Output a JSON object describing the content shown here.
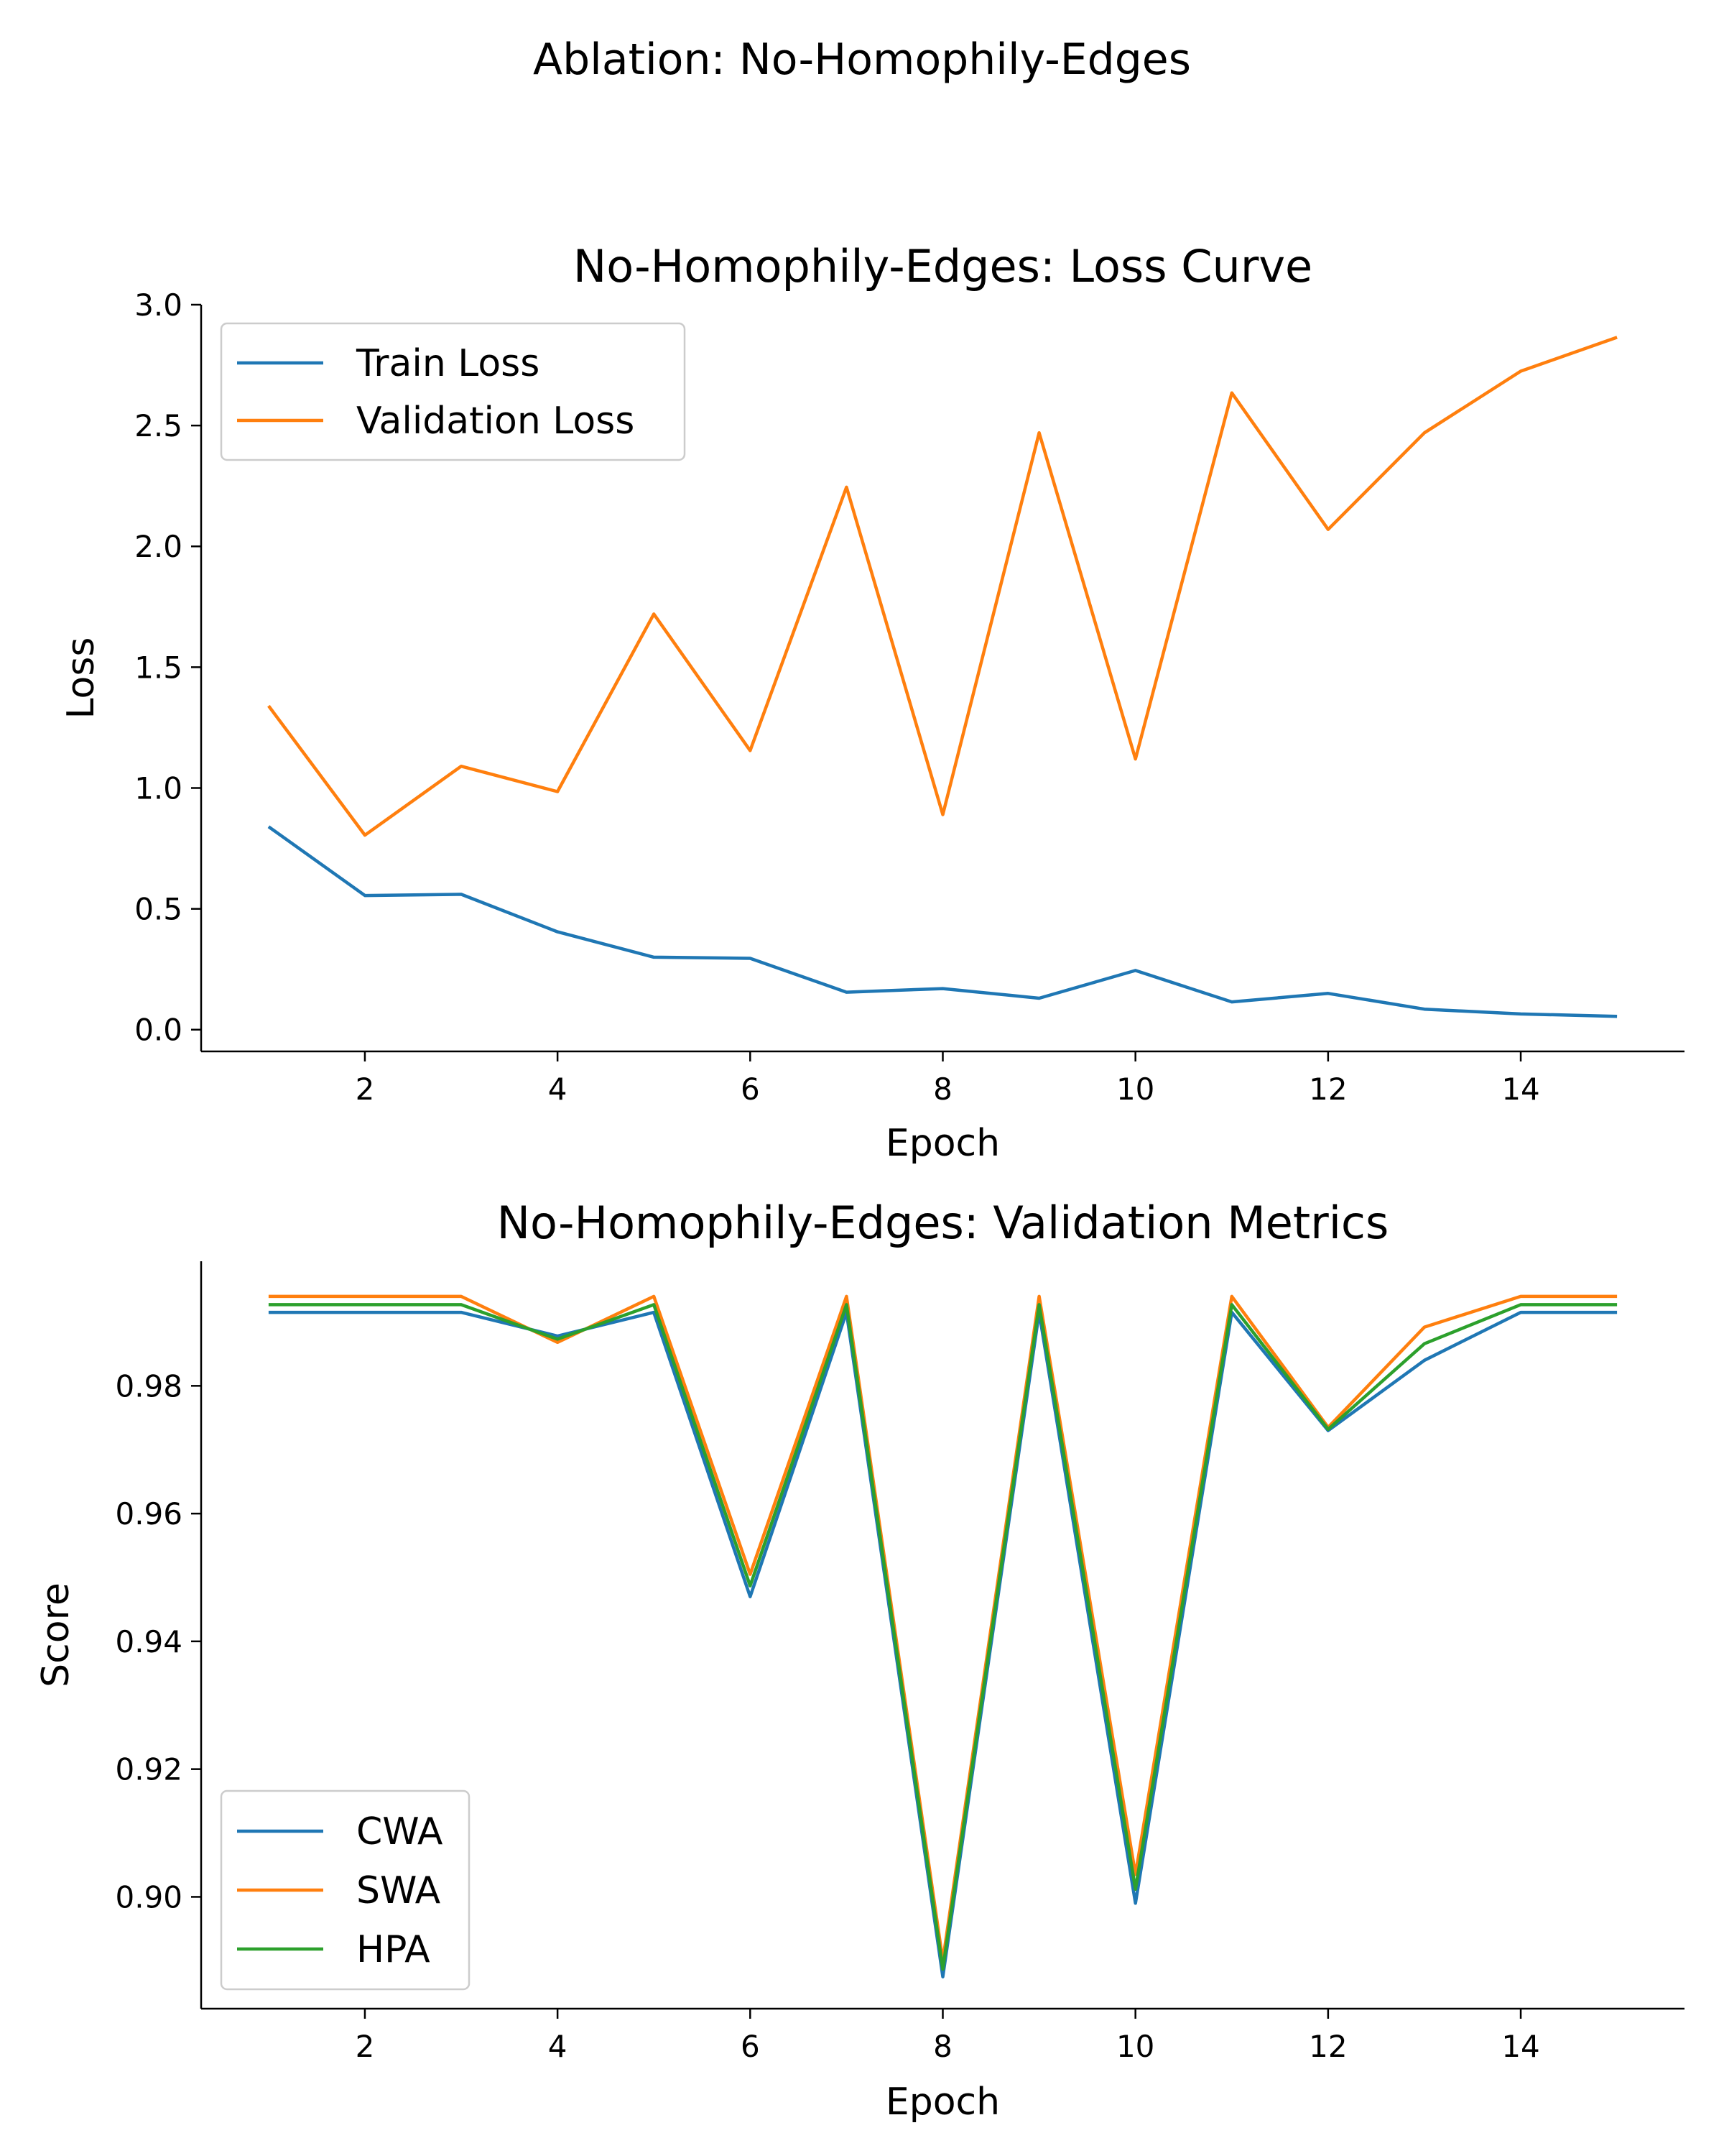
{
  "figure": {
    "suptitle": "Ablation: No-Homophily-Edges"
  },
  "chart_data": [
    {
      "type": "line",
      "title": "No-Homophily-Edges: Loss Curve",
      "xlabel": "Epoch",
      "ylabel": "Loss",
      "x": [
        1,
        2,
        3,
        4,
        5,
        6,
        7,
        8,
        9,
        10,
        11,
        12,
        13,
        14,
        15
      ],
      "xlim": [
        0.3,
        15.7
      ],
      "ylim": [
        -0.09,
        3.0
      ],
      "xticks": [
        2,
        4,
        6,
        8,
        10,
        12,
        14
      ],
      "yticks": [
        0.0,
        0.5,
        1.0,
        1.5,
        2.0,
        2.5,
        3.0
      ],
      "ytick_decimals": 1,
      "legend_position": "upper-left",
      "grid": false,
      "series": [
        {
          "name": "Train Loss",
          "color": "#1f77b4",
          "values": [
            0.84,
            0.555,
            0.56,
            0.405,
            0.3,
            0.295,
            0.155,
            0.17,
            0.13,
            0.245,
            0.115,
            0.15,
            0.085,
            0.065,
            0.055
          ]
        },
        {
          "name": "Validation Loss",
          "color": "#ff7f0e",
          "values": [
            1.34,
            0.805,
            1.09,
            0.985,
            1.72,
            1.155,
            2.245,
            0.89,
            2.47,
            1.12,
            2.635,
            2.07,
            2.47,
            2.725,
            2.865
          ]
        }
      ]
    },
    {
      "type": "line",
      "title": "No-Homophily-Edges: Validation Metrics",
      "xlabel": "Epoch",
      "ylabel": "Score",
      "x": [
        1,
        2,
        3,
        4,
        5,
        6,
        7,
        8,
        9,
        10,
        11,
        12,
        13,
        14,
        15
      ],
      "xlim": [
        0.3,
        15.7
      ],
      "ylim": [
        0.8825,
        0.9995
      ],
      "xticks": [
        2,
        4,
        6,
        8,
        10,
        12,
        14
      ],
      "yticks": [
        0.9,
        0.92,
        0.94,
        0.96,
        0.98
      ],
      "ytick_decimals": 2,
      "legend_position": "lower-left",
      "grid": false,
      "series": [
        {
          "name": "CWA",
          "color": "#1f77b4",
          "values": [
            0.9915,
            0.9915,
            0.9915,
            0.9878,
            0.9915,
            0.947,
            0.9915,
            0.8875,
            0.9915,
            0.899,
            0.9915,
            0.973,
            0.984,
            0.9915,
            0.9915
          ]
        },
        {
          "name": "SWA",
          "color": "#ff7f0e",
          "values": [
            0.994,
            0.994,
            0.994,
            0.9868,
            0.994,
            0.9505,
            0.994,
            0.89,
            0.994,
            0.9035,
            0.994,
            0.9735,
            0.9892,
            0.994,
            0.994
          ]
        },
        {
          "name": "HPA",
          "color": "#2ca02c",
          "values": [
            0.9927,
            0.9927,
            0.9927,
            0.9873,
            0.9927,
            0.9487,
            0.9927,
            0.8887,
            0.9927,
            0.9012,
            0.9927,
            0.9732,
            0.9866,
            0.9927,
            0.9927
          ]
        }
      ]
    }
  ]
}
